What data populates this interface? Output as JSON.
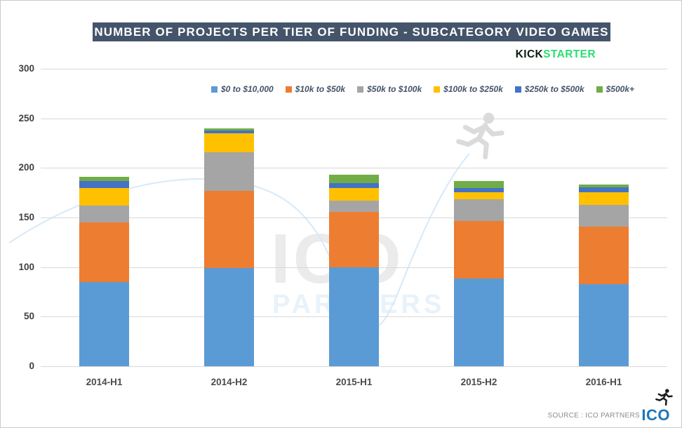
{
  "header": {
    "title": "NUMBER OF PROJECTS PER TIER OF FUNDING - SUBCATEGORY VIDEO GAMES",
    "title_bg": "#44546A",
    "brand": {
      "kick": "KICK",
      "starter": "STARTER",
      "kick_color": "#0B1E10",
      "starter_color": "#2BDE73"
    }
  },
  "chart_data": {
    "type": "bar",
    "stacked": true,
    "title": "NUMBER OF PROJECTS PER TIER OF FUNDING - SUBCATEGORY VIDEO GAMES",
    "categories": [
      "2014-H1",
      "2014-H2",
      "2015-H1",
      "2015-H2",
      "2016-H1"
    ],
    "series": [
      {
        "name": "$0 to $10,000",
        "color": "#5B9BD5",
        "values": [
          85,
          99,
          100,
          89,
          83
        ]
      },
      {
        "name": "$10k to $50k",
        "color": "#ED7D31",
        "values": [
          60,
          78,
          56,
          58,
          58
        ]
      },
      {
        "name": "$50k to $100k",
        "color": "#A5A5A5",
        "values": [
          17,
          39,
          11,
          22,
          22
        ]
      },
      {
        "name": "$100k to $250k",
        "color": "#FFC000",
        "values": [
          18,
          19,
          13,
          7,
          13
        ]
      },
      {
        "name": "$250k to $500k",
        "color": "#4472C4",
        "values": [
          7,
          3,
          5,
          4,
          5
        ]
      },
      {
        "name": "$500k+",
        "color": "#70AD47",
        "values": [
          4,
          2,
          8,
          7,
          2
        ]
      }
    ],
    "totals": [
      191,
      240,
      193,
      187,
      183
    ],
    "xlabel": "",
    "ylabel": "",
    "ylim": [
      0,
      300
    ],
    "yticks": [
      0,
      50,
      100,
      150,
      200,
      250,
      300
    ],
    "grid": true,
    "legend_position": "top"
  },
  "watermark": {
    "big": "ICO",
    "sub": "PARTNERS"
  },
  "footer": {
    "source": "SOURCE : ICO PARTNERS",
    "logo": "ICO",
    "logo_color": "#1B75BC"
  }
}
